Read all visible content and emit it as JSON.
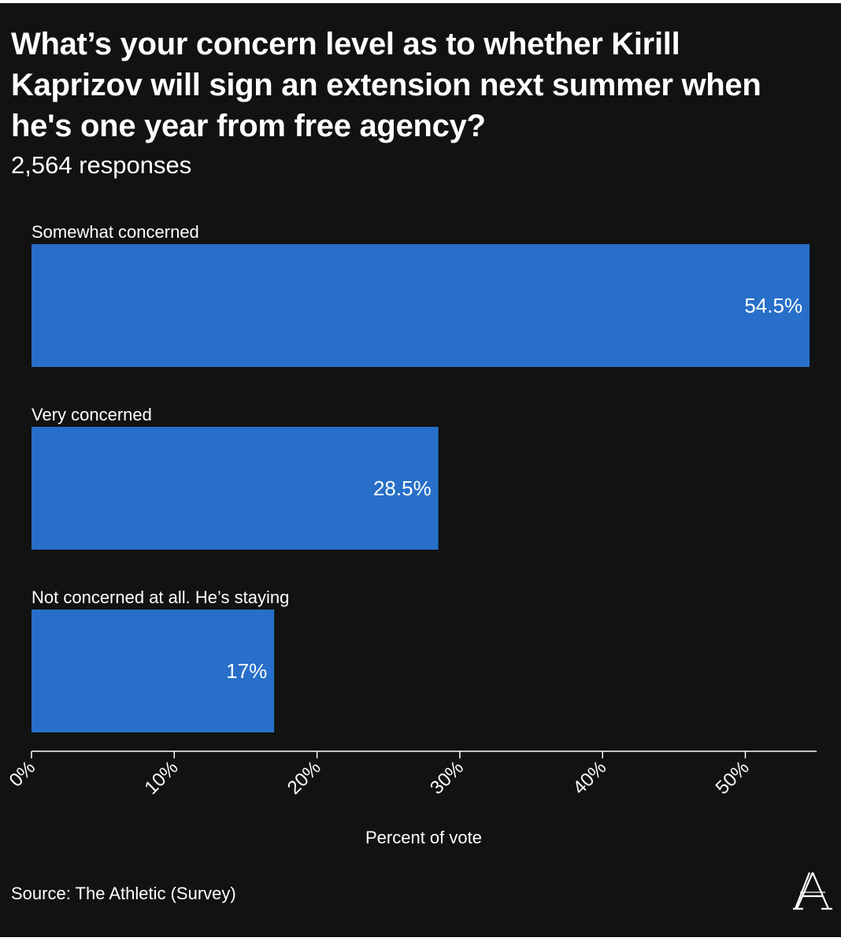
{
  "chart_data": {
    "type": "bar",
    "orientation": "horizontal",
    "title": "What’s your concern level as to whether Kirill Kaprizov will sign an extension next summer when he's one year from free agency?",
    "subtitle": "2,564 responses",
    "categories": [
      "Somewhat concerned",
      "Very concerned",
      "Not concerned at all. He’s staying"
    ],
    "values": [
      54.5,
      28.5,
      17
    ],
    "value_labels": [
      "54.5%",
      "28.5%",
      "17%"
    ],
    "xlabel": "Percent of vote",
    "xlim": [
      0,
      55
    ],
    "ticks": [
      0,
      10,
      20,
      30,
      40,
      50
    ],
    "tick_labels": [
      "0%",
      "10%",
      "20%",
      "30%",
      "40%",
      "50%"
    ],
    "grid": false,
    "bar_color": "#276fc8",
    "background": "#121212"
  },
  "footer": {
    "source": "Source: The Athletic (Survey)",
    "logo": "the-athletic-logo-icon"
  }
}
